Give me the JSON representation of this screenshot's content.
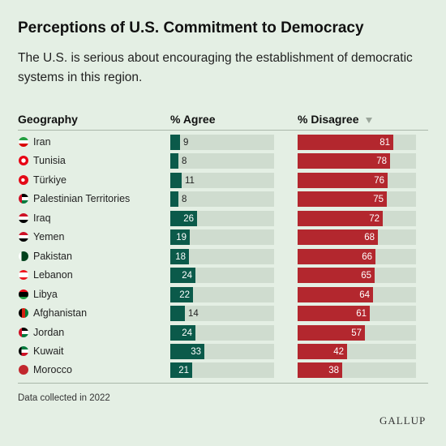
{
  "title": "Perceptions of U.S. Commitment to Democracy",
  "subtitle": "The U.S. is serious about encouraging the establishment of democratic systems in this region.",
  "columns": {
    "geography": "Geography",
    "agree": "% Agree",
    "disagree": "% Disagree"
  },
  "footnote": "Data collected in 2022",
  "brand": "GALLUP",
  "colors": {
    "agree": "#0b5a4a",
    "disagree": "#b3272e",
    "track": "#cfdccf",
    "background": "#e4efe4"
  },
  "chart_data": {
    "type": "bar",
    "categories": [
      "Iran",
      "Tunisia",
      "Türkiye",
      "Palestinian Territories",
      "Iraq",
      "Yemen",
      "Pakistan",
      "Lebanon",
      "Libya",
      "Afghanistan",
      "Jordan",
      "Kuwait",
      "Morocco"
    ],
    "series": [
      {
        "name": "% Agree",
        "values": [
          9,
          8,
          11,
          8,
          26,
          19,
          18,
          24,
          22,
          14,
          24,
          33,
          21
        ]
      },
      {
        "name": "% Disagree",
        "values": [
          81,
          78,
          76,
          75,
          72,
          68,
          66,
          65,
          64,
          61,
          57,
          42,
          38
        ]
      }
    ],
    "xlim": [
      0,
      100
    ],
    "sort": "% Disagree descending",
    "flag_icons": [
      "iran-flag-icon",
      "tunisia-flag-icon",
      "turkiye-flag-icon",
      "palestine-flag-icon",
      "iraq-flag-icon",
      "yemen-flag-icon",
      "pakistan-flag-icon",
      "lebanon-flag-icon",
      "libya-flag-icon",
      "afghanistan-flag-icon",
      "jordan-flag-icon",
      "kuwait-flag-icon",
      "morocco-flag-icon"
    ]
  }
}
